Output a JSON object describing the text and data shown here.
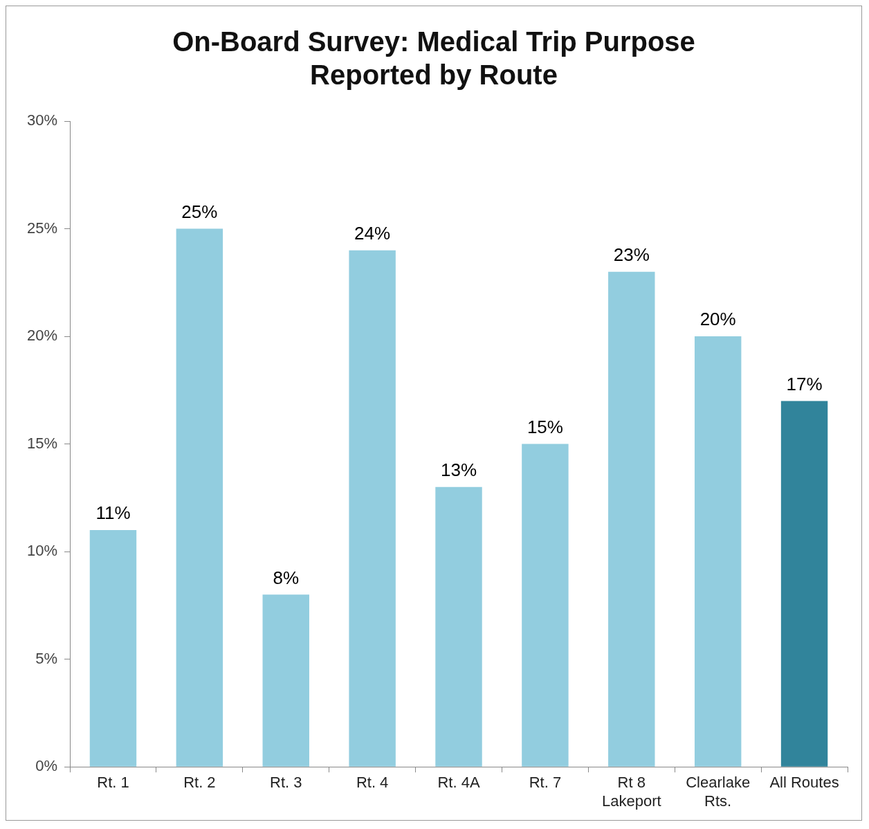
{
  "chart_data": {
    "type": "bar",
    "title": "On-Board Survey: Medical Trip Purpose\nReported by Route",
    "categories": [
      "Rt. 1",
      "Rt. 2",
      "Rt. 3",
      "Rt. 4",
      "Rt. 4A",
      "Rt. 7",
      "Rt 8\nLakeport",
      "Clearlake\nRts.",
      "All Routes"
    ],
    "values": [
      11,
      25,
      8,
      24,
      13,
      15,
      23,
      20,
      17
    ],
    "value_labels": [
      "11%",
      "25%",
      "8%",
      "24%",
      "13%",
      "15%",
      "23%",
      "20%",
      "17%"
    ],
    "colors": [
      "#92cddf",
      "#92cddf",
      "#92cddf",
      "#92cddf",
      "#92cddf",
      "#92cddf",
      "#92cddf",
      "#92cddf",
      "#31849b"
    ],
    "ylim": [
      0,
      30
    ],
    "yticks": [
      {
        "value": 0,
        "label": "0%"
      },
      {
        "value": 5,
        "label": "5%"
      },
      {
        "value": 10,
        "label": "10%"
      },
      {
        "value": 15,
        "label": "15%"
      },
      {
        "value": 20,
        "label": "20%"
      },
      {
        "value": 25,
        "label": "25%"
      },
      {
        "value": 30,
        "label": "30%"
      }
    ],
    "grid": false,
    "legend": false
  }
}
